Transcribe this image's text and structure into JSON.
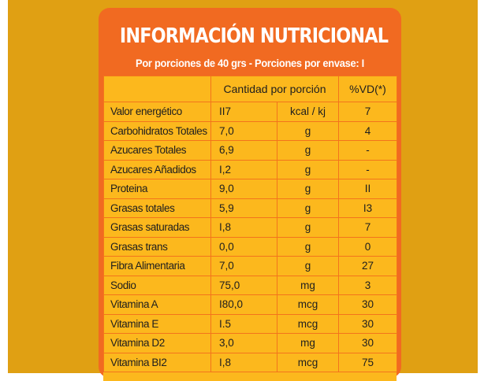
{
  "label": {
    "title": "INFORMACIÓN NUTRICIONAL",
    "subtitle": "Por porciones de 40 grs - Porciones por envase: I"
  },
  "table": {
    "headers": {
      "name": "",
      "quantity": "Cantidad por porción",
      "vd": "%VD(*)"
    },
    "rows": [
      {
        "name": "Valor energético",
        "qty": "II7",
        "unit": "kcal / kj",
        "vd": "7"
      },
      {
        "name": "Carbohidratos Totales",
        "qty": "7,0",
        "unit": "g",
        "vd": "4"
      },
      {
        "name": "Azucares Totales",
        "qty": "6,9",
        "unit": "g",
        "vd": "-"
      },
      {
        "name": "Azucares Añadidos",
        "qty": "I,2",
        "unit": "g",
        "vd": "-"
      },
      {
        "name": "Proteina",
        "qty": "9,0",
        "unit": "g",
        "vd": "II"
      },
      {
        "name": "Grasas totales",
        "qty": "5,9",
        "unit": "g",
        "vd": "I3"
      },
      {
        "name": "Grasas saturadas",
        "qty": "I,8",
        "unit": "g",
        "vd": "7"
      },
      {
        "name": "Grasas trans",
        "qty": "0,0",
        "unit": "g",
        "vd": "0"
      },
      {
        "name": "Fibra Alimentaria",
        "qty": "7,0",
        "unit": "g",
        "vd": "27"
      },
      {
        "name": "Sodio",
        "qty": "75,0",
        "unit": "mg",
        "vd": "3"
      },
      {
        "name": "Vitamina A",
        "qty": "I80,0",
        "unit": "mcg",
        "vd": "30"
      },
      {
        "name": "Vitamina E",
        "qty": "I.5",
        "unit": "mcg",
        "vd": "30"
      },
      {
        "name": "Vitamina D2",
        "qty": "3,0",
        "unit": "mg",
        "vd": "30"
      },
      {
        "name": "Vitamina BI2",
        "qty": "I,8",
        "unit": "mcg",
        "vd": "75"
      }
    ]
  },
  "colors": {
    "backdrop": "#e0a013",
    "card": "#f16a21",
    "table_fill": "#fcb81d",
    "text": "#1e1e1e"
  }
}
